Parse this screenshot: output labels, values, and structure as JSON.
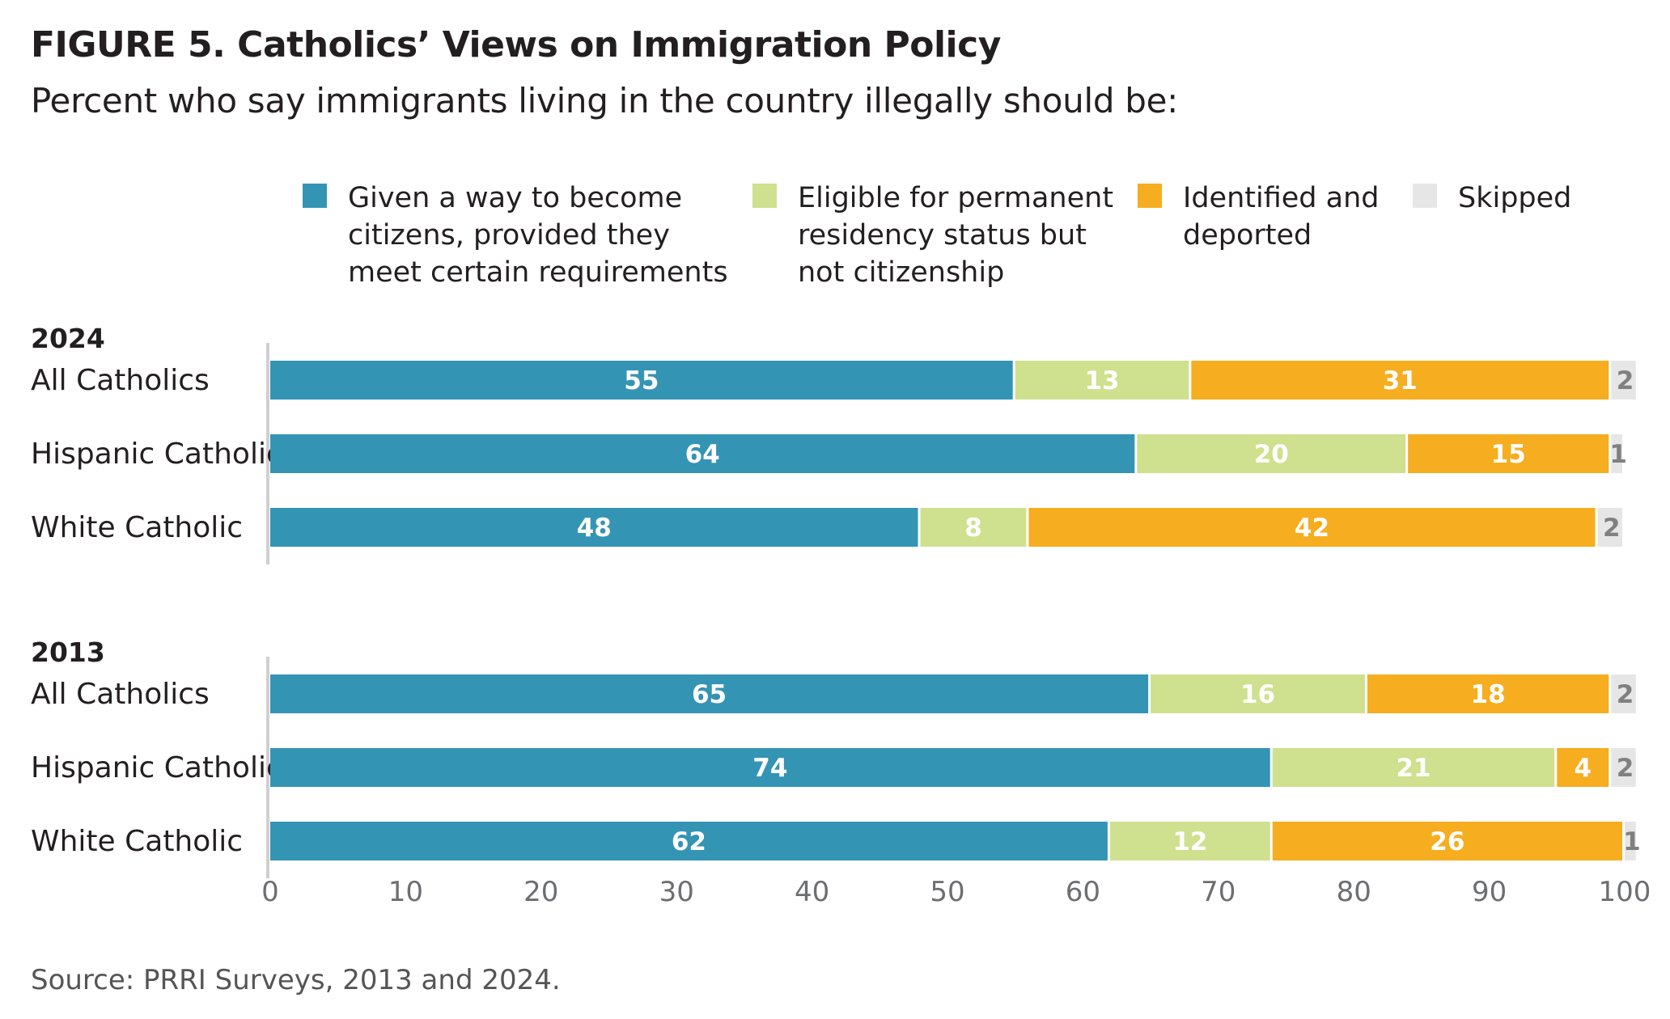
{
  "title": "FIGURE 5.  Catholics’ Views on Immigration Policy",
  "subtitle": "Percent who say immigrants living in the country illegally should be:",
  "source": "Source: PRRI Surveys, 2013 and 2024.",
  "colors": {
    "citizenship": "#3494b3",
    "permanent_residency": "#cfe08e",
    "deported": "#f6ad1f",
    "skipped": "#e6e6e6",
    "label_light": "#ffffff",
    "label_dark": "#808080",
    "axis": "#d0d0d0"
  },
  "chart_data": {
    "type": "bar",
    "orientation": "horizontal",
    "stacked": true,
    "xlim": [
      0,
      100
    ],
    "xticks": [
      0,
      10,
      20,
      30,
      40,
      50,
      60,
      70,
      80,
      90,
      100
    ],
    "legend_position": "top",
    "series": [
      {
        "key": "citizenship",
        "name": "Given a way to become\ncitizens, provided they\nmeet certain requirements"
      },
      {
        "key": "permanent_residency",
        "name": "Eligible for permanent\nresidency status but\nnot citizenship"
      },
      {
        "key": "deported",
        "name": "Identified and\ndeported"
      },
      {
        "key": "skipped",
        "name": "Skipped"
      }
    ],
    "groups": [
      {
        "label": "2024",
        "rows": [
          {
            "category": "All Catholics",
            "values": [
              55,
              13,
              31,
              2
            ]
          },
          {
            "category": "Hispanic Catholic",
            "values": [
              64,
              20,
              15,
              1
            ]
          },
          {
            "category": "White Catholic",
            "values": [
              48,
              8,
              42,
              2
            ]
          }
        ]
      },
      {
        "label": "2013",
        "rows": [
          {
            "category": "All Catholics",
            "values": [
              65,
              16,
              18,
              2
            ]
          },
          {
            "category": "Hispanic Catholic",
            "values": [
              74,
              21,
              4,
              2
            ]
          },
          {
            "category": "White Catholic",
            "values": [
              62,
              12,
              26,
              1
            ]
          }
        ]
      }
    ]
  }
}
